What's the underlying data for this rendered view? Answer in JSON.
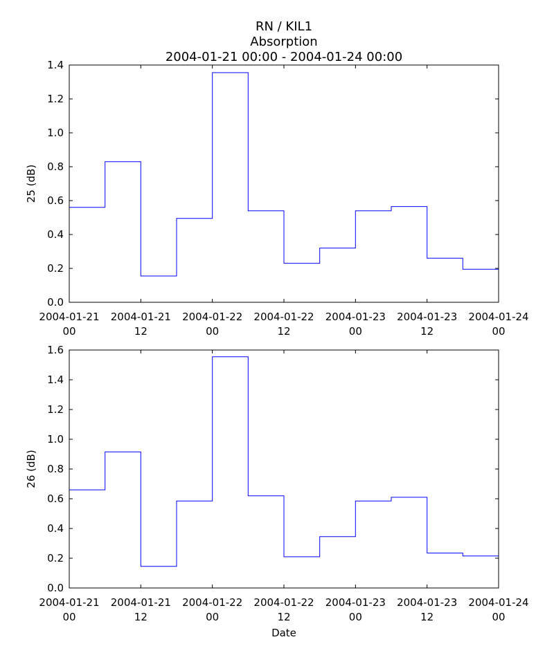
{
  "figure": {
    "title_lines": [
      "RN / KIL1",
      "Absorption",
      "2004-01-21 00:00 - 2004-01-24 00:00"
    ]
  },
  "chart_data": [
    {
      "type": "line",
      "drawstyle": "steps-post",
      "ylabel": "25 (dB)",
      "xlabel": "",
      "xlim": [
        "2004-01-21 00:00",
        "2004-01-24 00:00"
      ],
      "ylim": [
        0,
        1.4
      ],
      "yticks": [
        0.0,
        0.2,
        0.4,
        0.6,
        0.8,
        1.0,
        1.2,
        1.4
      ],
      "ytick_labels": [
        "0.0",
        "0.2",
        "0.4",
        "0.6",
        "0.8",
        "1.0",
        "1.2",
        "1.4"
      ],
      "xticks": [
        {
          "value": "2004-01-21 00:00",
          "label_date": "2004-01-21",
          "label_hour": "00"
        },
        {
          "value": "2004-01-21 12:00",
          "label_date": "2004-01-21",
          "label_hour": "12"
        },
        {
          "value": "2004-01-22 00:00",
          "label_date": "2004-01-22",
          "label_hour": "00"
        },
        {
          "value": "2004-01-22 12:00",
          "label_date": "2004-01-22",
          "label_hour": "12"
        },
        {
          "value": "2004-01-23 00:00",
          "label_date": "2004-01-23",
          "label_hour": "00"
        },
        {
          "value": "2004-01-23 12:00",
          "label_date": "2004-01-23",
          "label_hour": "12"
        },
        {
          "value": "2004-01-24 00:00",
          "label_date": "2004-01-24",
          "label_hour": "00"
        }
      ],
      "x": [
        "2004-01-21 00:00",
        "2004-01-21 06:00",
        "2004-01-21 12:00",
        "2004-01-21 18:00",
        "2004-01-22 00:00",
        "2004-01-22 06:00",
        "2004-01-22 12:00",
        "2004-01-22 18:00",
        "2004-01-23 00:00",
        "2004-01-23 06:00",
        "2004-01-23 12:00",
        "2004-01-23 18:00"
      ],
      "values": [
        0.56,
        0.83,
        0.155,
        0.495,
        1.355,
        0.54,
        0.23,
        0.32,
        0.54,
        0.565,
        0.26,
        0.195
      ],
      "grid": false
    },
    {
      "type": "line",
      "drawstyle": "steps-post",
      "ylabel": "26 (dB)",
      "xlabel": "Date",
      "xlim": [
        "2004-01-21 00:00",
        "2004-01-24 00:00"
      ],
      "ylim": [
        0,
        1.6
      ],
      "yticks": [
        0.0,
        0.2,
        0.4,
        0.6,
        0.8,
        1.0,
        1.2,
        1.4,
        1.6
      ],
      "ytick_labels": [
        "0.0",
        "0.2",
        "0.4",
        "0.6",
        "0.8",
        "1.0",
        "1.2",
        "1.4",
        "1.6"
      ],
      "xticks": [
        {
          "value": "2004-01-21 00:00",
          "label_date": "2004-01-21",
          "label_hour": "00"
        },
        {
          "value": "2004-01-21 12:00",
          "label_date": "2004-01-21",
          "label_hour": "12"
        },
        {
          "value": "2004-01-22 00:00",
          "label_date": "2004-01-22",
          "label_hour": "00"
        },
        {
          "value": "2004-01-22 12:00",
          "label_date": "2004-01-22",
          "label_hour": "12"
        },
        {
          "value": "2004-01-23 00:00",
          "label_date": "2004-01-23",
          "label_hour": "00"
        },
        {
          "value": "2004-01-23 12:00",
          "label_date": "2004-01-23",
          "label_hour": "12"
        },
        {
          "value": "2004-01-24 00:00",
          "label_date": "2004-01-24",
          "label_hour": "00"
        }
      ],
      "x": [
        "2004-01-21 00:00",
        "2004-01-21 06:00",
        "2004-01-21 12:00",
        "2004-01-21 18:00",
        "2004-01-22 00:00",
        "2004-01-22 06:00",
        "2004-01-22 12:00",
        "2004-01-22 18:00",
        "2004-01-23 00:00",
        "2004-01-23 06:00",
        "2004-01-23 12:00",
        "2004-01-23 18:00"
      ],
      "values": [
        0.66,
        0.915,
        0.145,
        0.585,
        1.555,
        0.62,
        0.21,
        0.345,
        0.585,
        0.61,
        0.235,
        0.215
      ],
      "grid": false
    }
  ],
  "colors": {
    "series": "#0000ff",
    "frame": "#000000",
    "background": "#ffffff"
  }
}
